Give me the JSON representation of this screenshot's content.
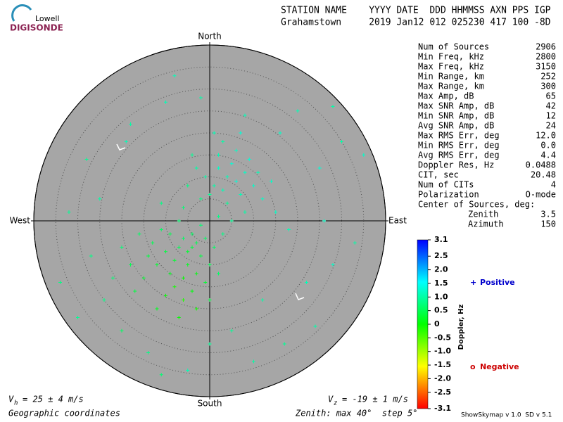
{
  "logo": {
    "top": "Lowell",
    "bottom": "DIGISONDE"
  },
  "header": {
    "labels": "STATION NAME    YYYY DATE  DDD HHMMSS AXN PPS IGP",
    "values": "Grahamstown     2019 Jan12 012 025230 417 100 -8D"
  },
  "stats": [
    [
      "Num of Sources",
      2906
    ],
    [
      "Min Freq, kHz",
      2800
    ],
    [
      "Max Freq, kHz",
      3150
    ],
    [
      "Min Range, km",
      252
    ],
    [
      "Max Range, km",
      300
    ],
    [
      "Max Amp, dB",
      65
    ],
    [
      "Max SNR Amp, dB",
      42
    ],
    [
      "Min SNR Amp, dB",
      12
    ],
    [
      "Avg SNR Amp, dB",
      24
    ],
    [
      "Max RMS Err, deg",
      "12.0"
    ],
    [
      "Min RMS Err, deg",
      "0.0"
    ],
    [
      "Avg RMS Err, deg",
      4.4
    ],
    [
      "Doppler Res, Hz",
      0.0488
    ],
    [
      "CIT, sec",
      20.48
    ],
    [
      "Num of CITs",
      4
    ],
    [
      "Polarization",
      "O-mode"
    ]
  ],
  "center": {
    "title": "Center of Sources, deg:",
    "rows": [
      [
        "Zenith",
        3.5
      ],
      [
        "Azimuth",
        150
      ]
    ]
  },
  "footer": {
    "vh": {
      "symbol": "V",
      "sub": "h",
      "text": "= 25 ± 4 m/s"
    },
    "vz": {
      "symbol": "V",
      "sub": "z",
      "text": "= -19 ± 1 m/s"
    },
    "coords": "Geographic coordinates",
    "zenith": "Zenith: max 40°  step 5°",
    "version": "ShowSkymap v 1.0  SD v 5.1"
  },
  "chart_data": {
    "type": "scatter",
    "directions": {
      "north": "North",
      "south": "South",
      "east": "East",
      "west": "West"
    },
    "xlim": [
      -40,
      40
    ],
    "ylim": [
      -40,
      40
    ],
    "rticks": [
      5,
      10,
      15,
      20,
      25,
      30,
      35,
      40
    ],
    "colorbar": {
      "label": "Doppler, Hz",
      "lim": [
        -3.1,
        3.1
      ],
      "ticks": [
        3.1,
        2.5,
        {
          "value": 2,
          "label": "2.0"
        },
        1.5,
        {
          "value": 1,
          "label": "1.0"
        },
        0.5,
        0,
        -0.5,
        {
          "value": -1,
          "label": "-1.0"
        },
        -1.5,
        {
          "value": -2,
          "label": "-2.0"
        },
        -2.5,
        -3.1
      ]
    },
    "legend": {
      "positive": {
        "marker": "+",
        "name": "Positive",
        "color": "#0000cc"
      },
      "negative": {
        "marker": "o",
        "name": "Negative",
        "color": "#cc0000"
      }
    },
    "x": [
      2,
      4,
      6,
      1,
      3,
      8,
      -1,
      5,
      7,
      0,
      10,
      2,
      -3,
      9,
      4,
      12,
      -2,
      6,
      11,
      3,
      -5,
      14,
      1,
      7,
      -4,
      15,
      8,
      -6,
      2,
      5,
      -4,
      -3,
      -5,
      -6,
      -2,
      -7,
      -4,
      -8,
      -1,
      -5,
      -9,
      -3,
      -10,
      -6,
      -2,
      -7,
      -11,
      -12,
      -8,
      -4,
      -13,
      -9,
      -6,
      -14,
      0,
      1,
      -15,
      -10,
      -1,
      -16,
      -3,
      2,
      -12,
      -18,
      -7,
      0,
      -17,
      -20,
      3,
      -11,
      -24,
      -30,
      -20,
      -19,
      -22,
      -27,
      5,
      12,
      22,
      28,
      25,
      20,
      30,
      -10,
      -18,
      -28,
      -14,
      0,
      10,
      -5,
      26,
      18,
      16,
      33,
      -32,
      -25,
      8,
      -2,
      35,
      -11,
      17,
      24,
      -34,
      -8,
      28
    ],
    "y": [
      12,
      10,
      9,
      8,
      7,
      11,
      10,
      13,
      6,
      6,
      8,
      15,
      12,
      14,
      4,
      5,
      5,
      16,
      11,
      18,
      8,
      9,
      20,
      20,
      15,
      2,
      2,
      3,
      1,
      0,
      -6,
      -5,
      -7,
      -4,
      -8,
      -6,
      -3,
      -9,
      -4,
      -10,
      -3,
      -12,
      -7,
      -13,
      -1,
      0,
      -2,
      -10,
      -15,
      -16,
      -5,
      -12,
      -18,
      -8,
      -10,
      -6,
      -13,
      -17,
      -14,
      -3,
      -20,
      -12,
      -20,
      -10,
      -22,
      -18,
      -16,
      -6,
      -3,
      4,
      -18,
      -22,
      -25,
      18,
      -13,
      -8,
      -25,
      -18,
      -14,
      -10,
      12,
      25,
      18,
      27,
      22,
      14,
      -30,
      -28,
      -32,
      -34,
      0,
      -2,
      20,
      -5,
      2,
      5,
      24,
      28,
      15,
      -35,
      -28,
      -24,
      -14,
      33,
      26
    ],
    "doppler": [
      1.2,
      1.1,
      1.3,
      1.0,
      1.1,
      1.2,
      1.0,
      1.3,
      1.1,
      0.9,
      1.2,
      1.1,
      1.0,
      1.3,
      0.9,
      1.2,
      0.8,
      1.2,
      1.1,
      1.0,
      0.8,
      1.2,
      1.1,
      1.3,
      0.9,
      1.2,
      1.0,
      0.7,
      0.8,
      0.9,
      0.4,
      0.5,
      0.3,
      0.6,
      0.4,
      0.5,
      0.6,
      0.3,
      0.6,
      0.2,
      0.5,
      0.1,
      0.4,
      0.0,
      0.7,
      0.7,
      0.6,
      0.3,
      -0.1,
      0.1,
      0.5,
      0.2,
      -0.2,
      0.4,
      0.5,
      0.6,
      0.3,
      0.0,
      0.3,
      0.6,
      -0.1,
      0.6,
      0.2,
      0.5,
      0.0,
      0.4,
      0.4,
      0.7,
      0.8,
      0.8,
      0.8,
      0.9,
      0.6,
      1.1,
      0.7,
      0.8,
      0.9,
      1.0,
      1.1,
      1.2,
      1.3,
      1.1,
      1.0,
      1.1,
      1.0,
      0.9,
      0.8,
      0.9,
      1.0,
      1.1,
      1.2,
      1.1,
      1.2,
      1.0,
      0.9,
      1.0,
      1.1,
      1.0,
      1.2,
      0.7,
      0.9,
      1.0,
      0.8,
      1.1,
      1.0
    ]
  }
}
